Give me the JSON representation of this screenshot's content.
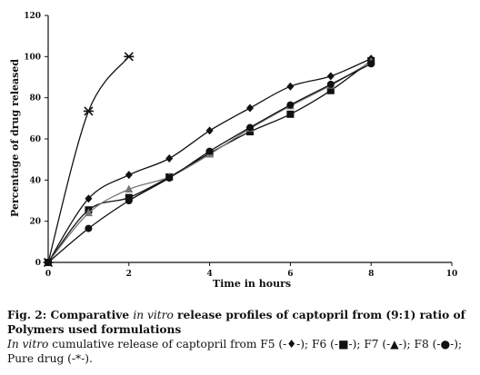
{
  "caption": {
    "fig_label": "Fig. 2:",
    "title_pre": " Comparative ",
    "title_italic": "in vitro",
    "title_post": " release profiles of captopril from (9:1) ratio of Polymers used formulations",
    "note_italic": "In vitro",
    "note_text": " cumulative release of captopril from F5 (-♦-); F6 (-■-); F7 (-▲-); F8 (-●-); Pure drug (-*-)."
  },
  "chart_data": {
    "type": "line",
    "title": "",
    "xlabel": "Time in hours",
    "ylabel": "Percentage of drug released",
    "xlim": [
      0,
      10
    ],
    "ylim": [
      0,
      120
    ],
    "x_ticks": [
      0,
      2,
      4,
      6,
      8,
      10
    ],
    "y_ticks": [
      0,
      20,
      40,
      60,
      80,
      100,
      120
    ],
    "x_tick_labels": [
      "0",
      "2",
      "4",
      "6",
      "8",
      "10"
    ],
    "y_tick_labels": [
      "0",
      "20",
      "40",
      "60",
      "80",
      "100",
      "120"
    ],
    "grid": false,
    "legend": "none",
    "series": [
      {
        "id": "F5",
        "marker": "diamond",
        "color": "#111111",
        "x": [
          0,
          1,
          2,
          3,
          4,
          5,
          6,
          7,
          8
        ],
        "y": [
          0,
          31,
          42.5,
          50.5,
          64,
          75,
          85.5,
          90.5,
          99
        ]
      },
      {
        "id": "F6",
        "marker": "square",
        "color": "#111111",
        "x": [
          0,
          1,
          2,
          3,
          4,
          5,
          6,
          7,
          8
        ],
        "y": [
          0,
          25.5,
          31.5,
          41.5,
          53,
          63.5,
          72,
          83.5,
          98
        ]
      },
      {
        "id": "F7",
        "marker": "triangle",
        "color": "#777777",
        "x": [
          0,
          1,
          2,
          3,
          4,
          5,
          6,
          7,
          8
        ],
        "y": [
          0,
          24,
          35.5,
          41.5,
          52.5,
          65,
          76,
          86,
          97.5
        ]
      },
      {
        "id": "F8",
        "marker": "circle",
        "color": "#111111",
        "x": [
          0,
          1,
          2,
          3,
          4,
          5,
          6,
          7,
          8
        ],
        "y": [
          0,
          16.5,
          30,
          41,
          54,
          65.5,
          76.5,
          86.5,
          96.5
        ]
      },
      {
        "id": "Pure drug",
        "marker": "asterisk",
        "color": "#111111",
        "x": [
          0,
          1,
          2
        ],
        "y": [
          0,
          73.5,
          100
        ]
      }
    ]
  }
}
